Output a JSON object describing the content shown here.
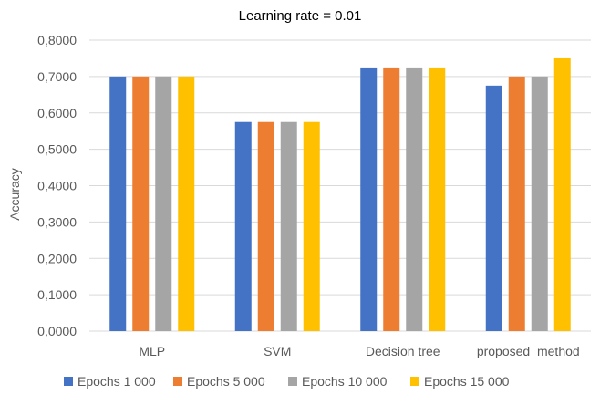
{
  "chart_data": {
    "type": "bar",
    "title": "Learning rate = 0.01",
    "xlabel": "",
    "ylabel": "Accuracy",
    "ylim": [
      0,
      0.8
    ],
    "ytick_step": 0.1,
    "ytick_labels": [
      "0,0000",
      "0,1000",
      "0,2000",
      "0,3000",
      "0,4000",
      "0,5000",
      "0,6000",
      "0,7000",
      "0,8000"
    ],
    "grid": true,
    "legend_position": "bottom",
    "categories": [
      "MLP",
      "SVM",
      "Decision tree",
      "proposed_method"
    ],
    "series": [
      {
        "name": "Epochs 1 000",
        "color": "#4472C4",
        "values": [
          0.7,
          0.575,
          0.725,
          0.675
        ]
      },
      {
        "name": "Epochs 5 000",
        "color": "#ED7D31",
        "values": [
          0.7,
          0.575,
          0.725,
          0.7
        ]
      },
      {
        "name": "Epochs 10 000",
        "color": "#A5A5A5",
        "values": [
          0.7,
          0.575,
          0.725,
          0.7
        ]
      },
      {
        "name": "Epochs 15 000",
        "color": "#FFC000",
        "values": [
          0.7,
          0.575,
          0.725,
          0.75
        ]
      }
    ]
  },
  "colors": {
    "gridline": "#D9D9D9",
    "axis_text": "#595959",
    "title_text": "#000000"
  }
}
